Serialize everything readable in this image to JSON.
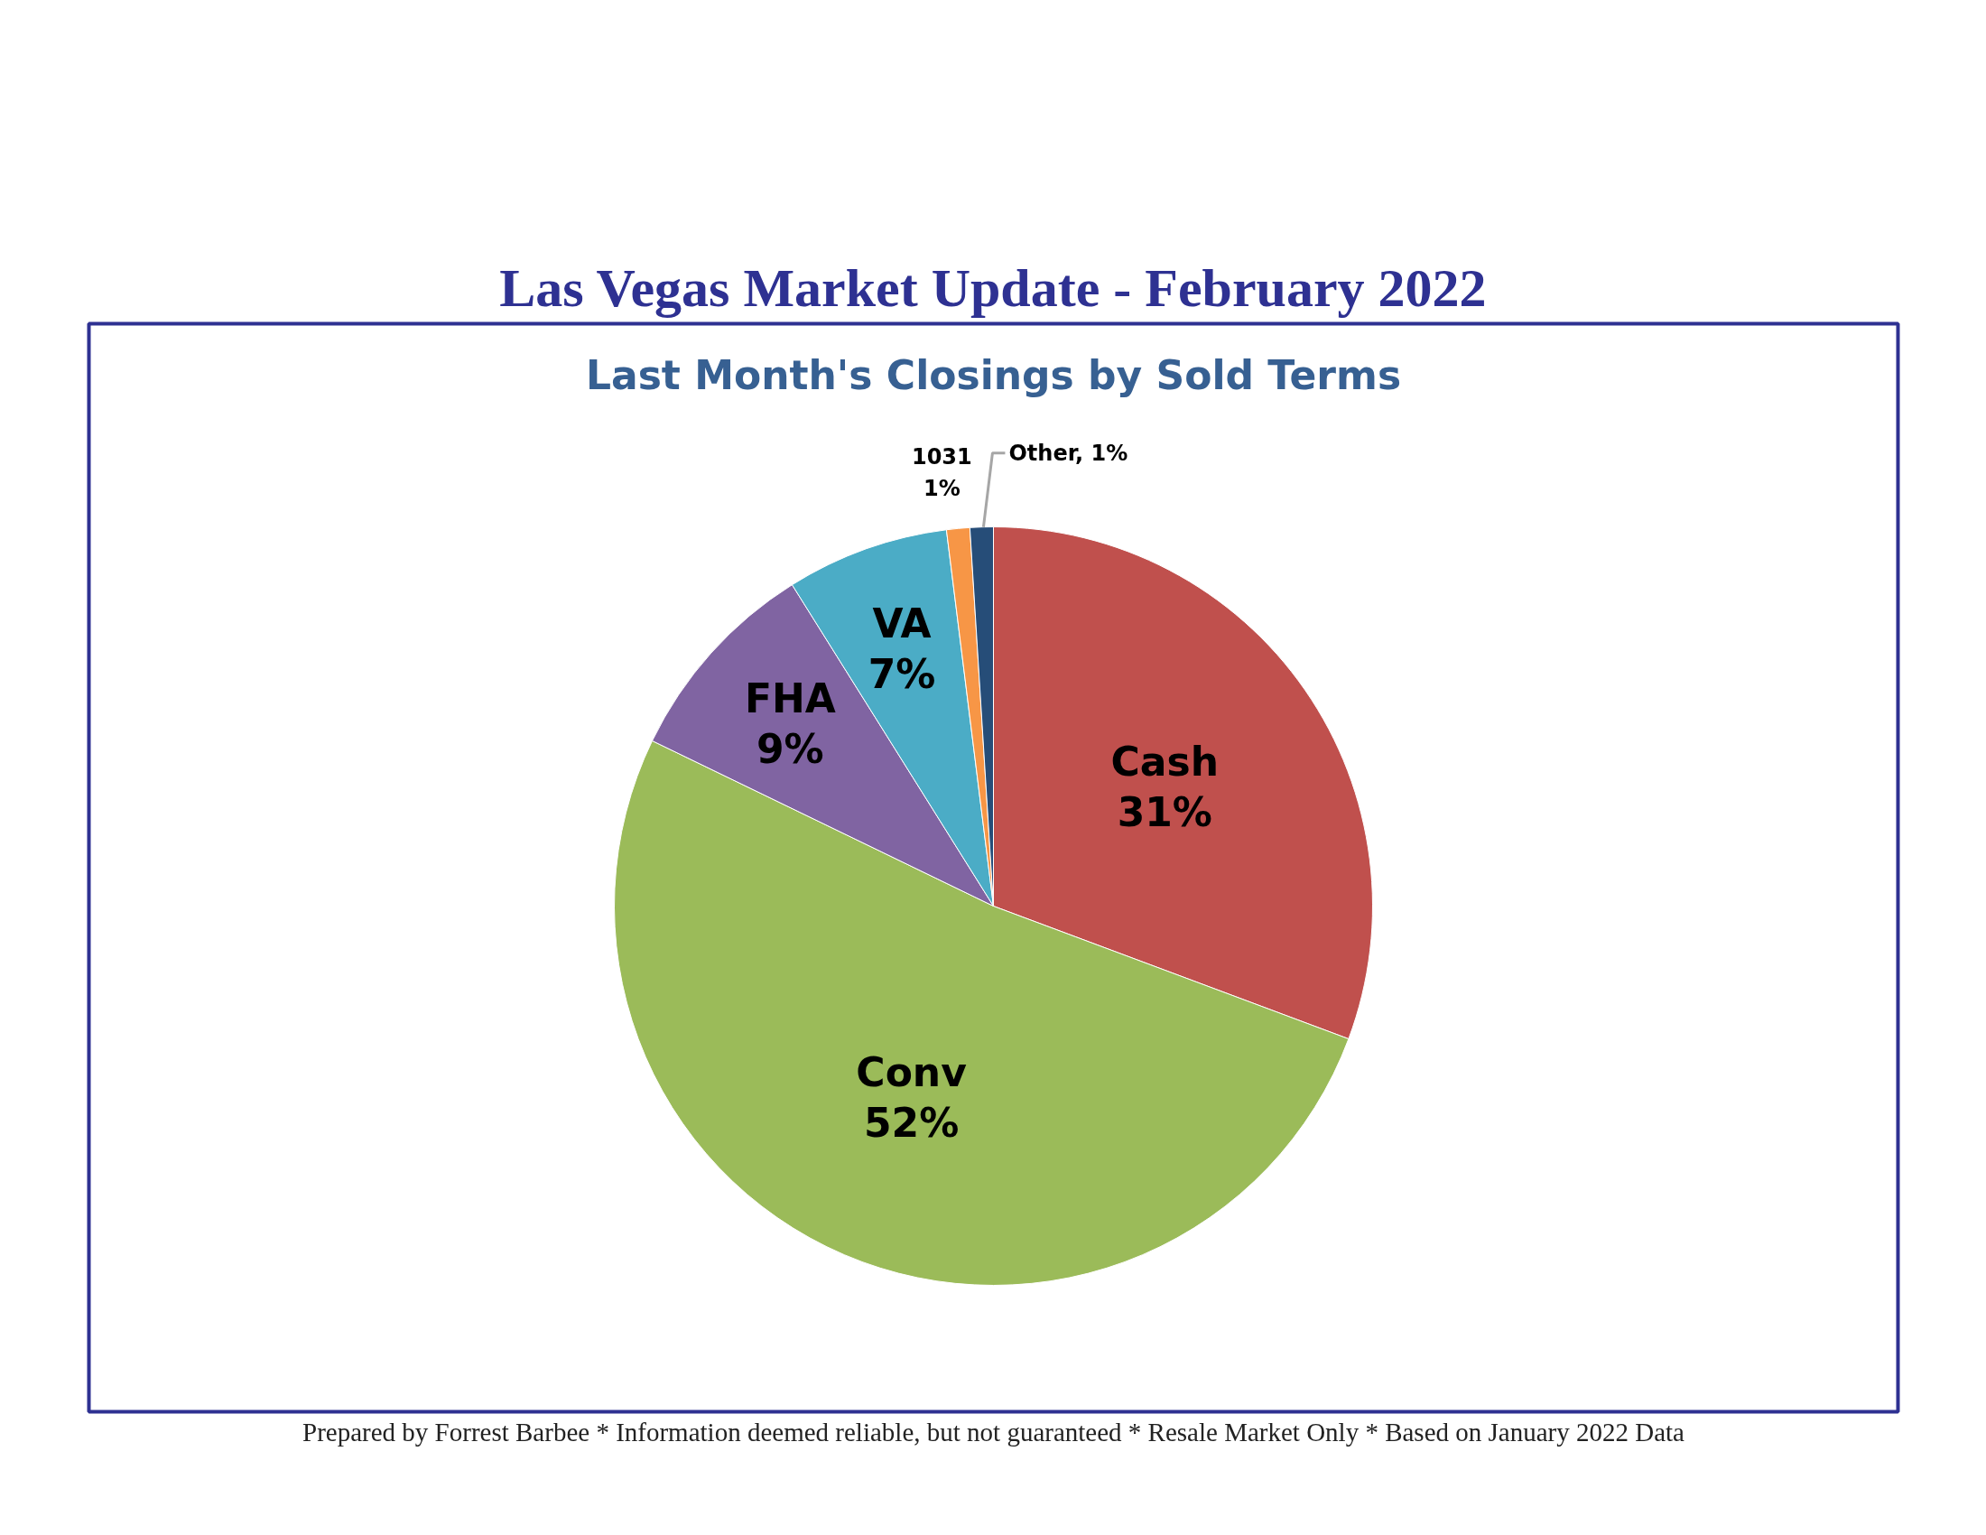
{
  "chart_data": {
    "type": "pie",
    "title": "Las Vegas Market Update - February 2022",
    "subtitle": "Last Month's Closings by Sold Terms",
    "categories": [
      "Cash",
      "Conv",
      "FHA",
      "VA",
      "1031",
      "Other"
    ],
    "values": [
      31,
      52,
      9,
      7,
      1,
      1
    ],
    "colors": [
      "#c0504d",
      "#9bbb59",
      "#8064a2",
      "#4bacc6",
      "#f79646",
      "#264d78"
    ],
    "value_labels": [
      "31%",
      "52%",
      "9%",
      "7%",
      "1%",
      "1%"
    ],
    "annotations": [
      "Prepared by Forrest Barbee * Information deemed reliable, but not guaranteed * Resale Market Only * Based on January 2022 Data"
    ]
  }
}
